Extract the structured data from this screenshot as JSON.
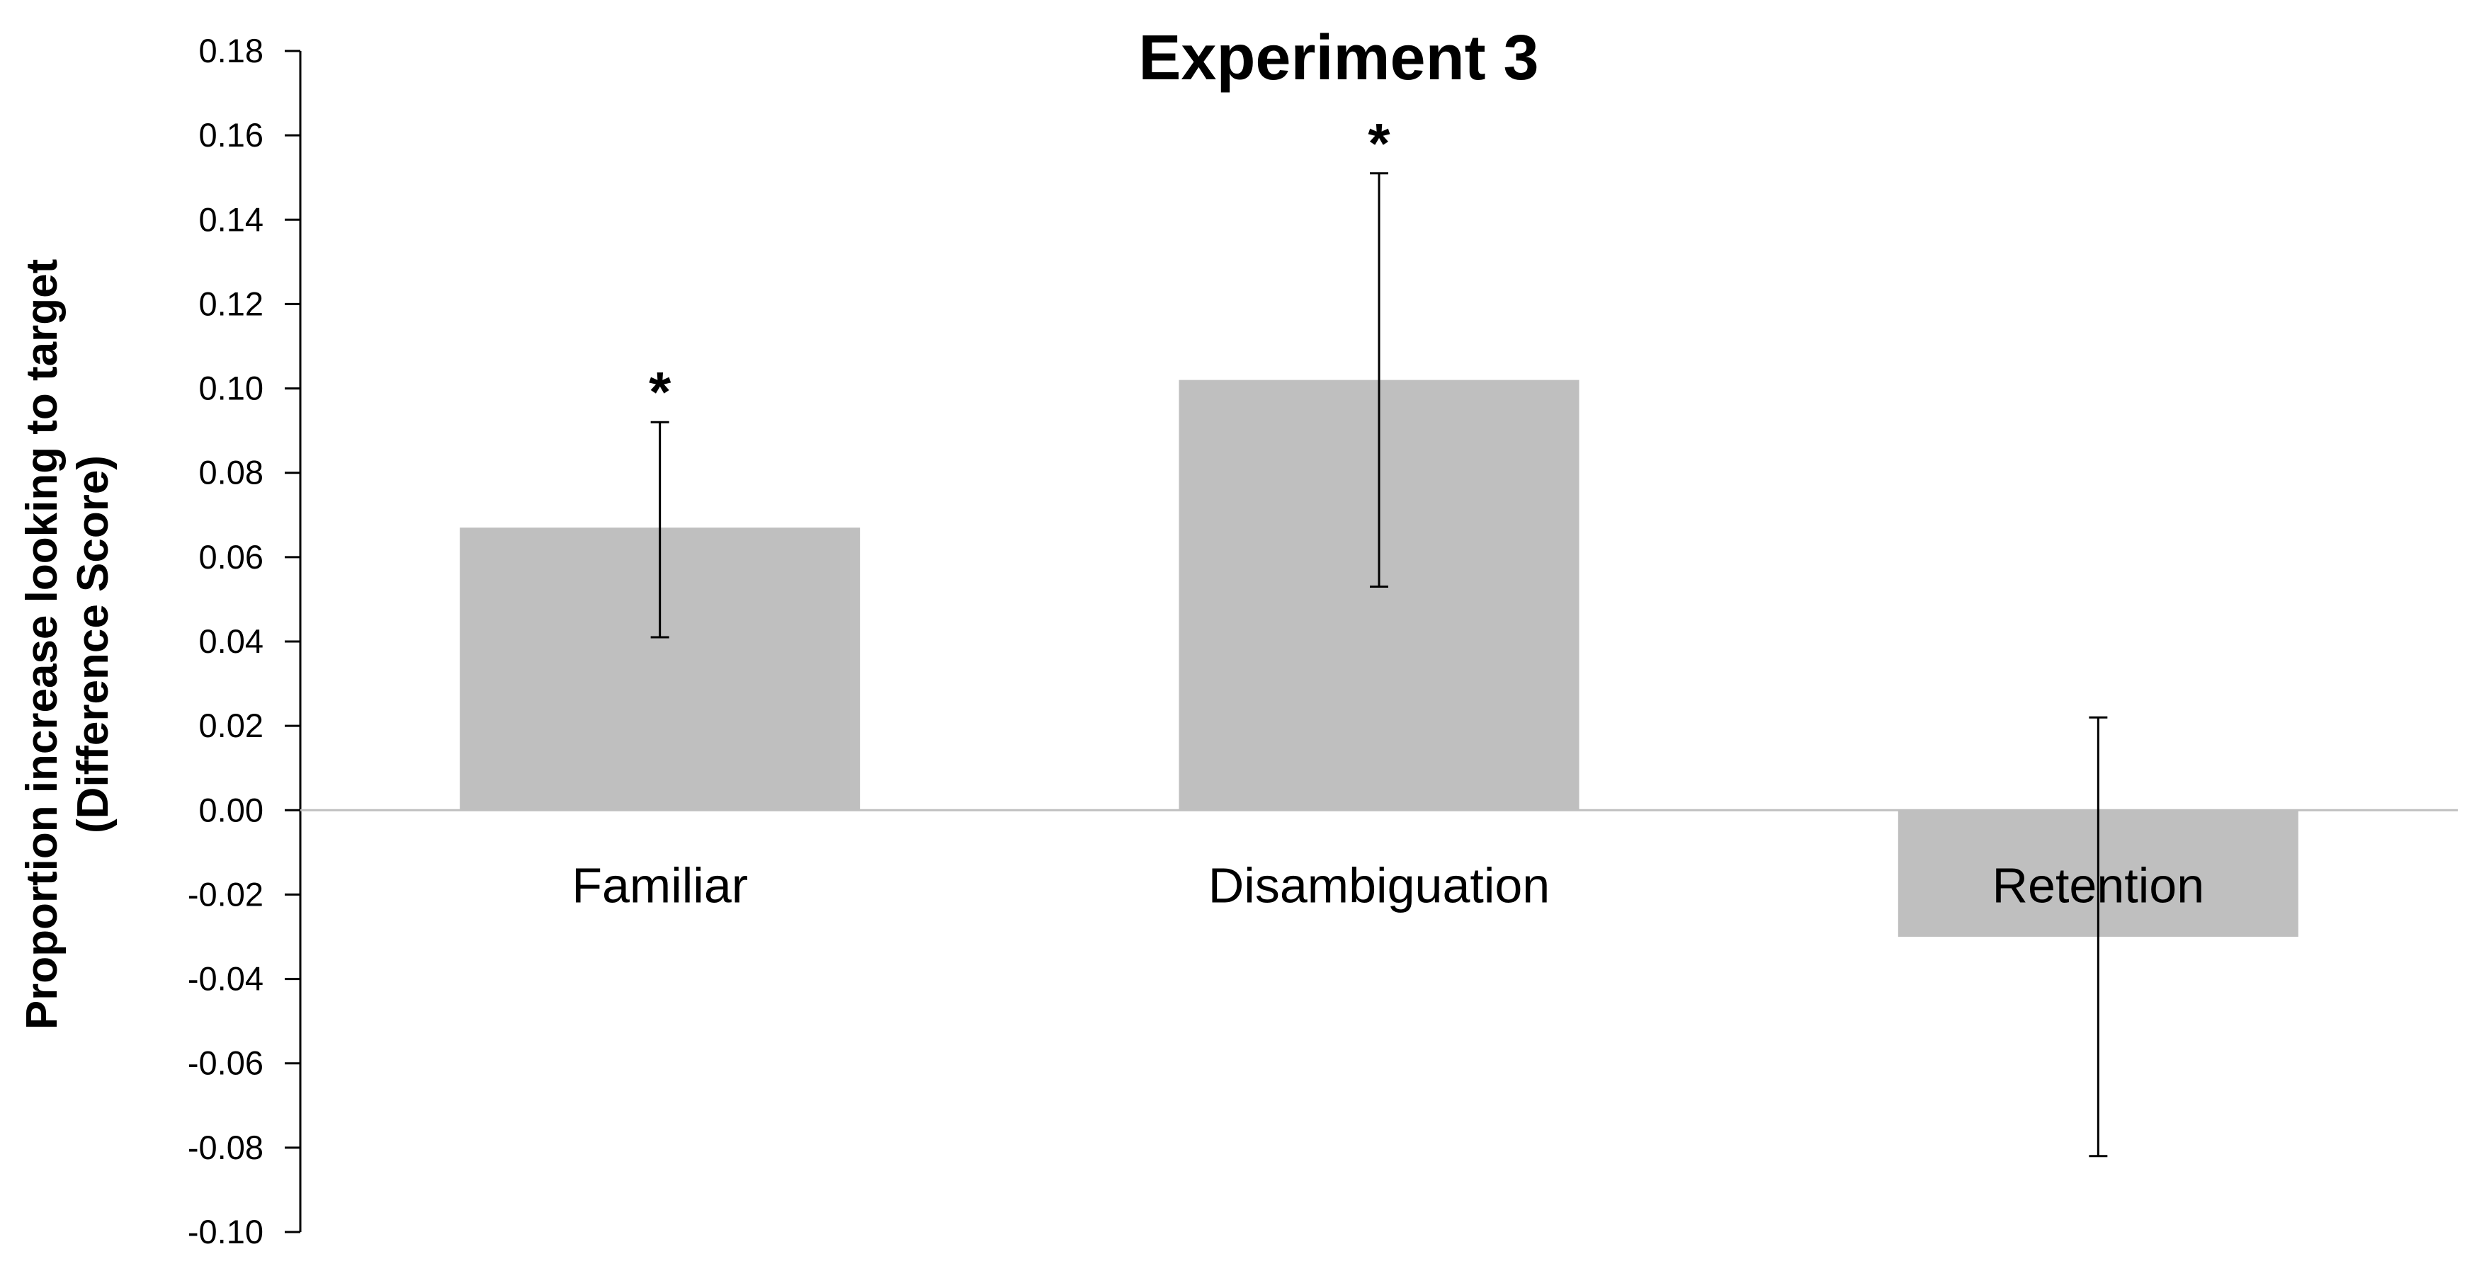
{
  "chart_data": {
    "type": "bar",
    "title": "Experiment 3",
    "ylabel": [
      "Proportion increase looking to target",
      "(Difference Score)"
    ],
    "xlabel": "",
    "categories": [
      "Familiar",
      "Disambiguation",
      "Retention"
    ],
    "values": [
      0.067,
      0.102,
      -0.03
    ],
    "error_bars": [
      {
        "low": 0.041,
        "high": 0.092
      },
      {
        "low": 0.053,
        "high": 0.151
      },
      {
        "low": -0.082,
        "high": 0.022
      }
    ],
    "significance": [
      "*",
      "*",
      ""
    ],
    "ylim": [
      -0.1,
      0.18
    ],
    "yticks": [
      0.18,
      0.16,
      0.14,
      0.12,
      0.1,
      0.08,
      0.06,
      0.04,
      0.02,
      0.0,
      -0.02,
      -0.04,
      -0.06,
      -0.08,
      -0.1
    ],
    "ytick_labels": [
      "0.18",
      "0.16",
      "0.14",
      "0.12",
      "0.10",
      "0.08",
      "0.06",
      "0.04",
      "0.02",
      "0.00",
      "-0.02",
      "-0.04",
      "-0.06",
      "-0.08",
      "-0.10"
    ],
    "grid": false,
    "legend": "none",
    "colors": {
      "bar": "#bfbfbf",
      "axis": "#000000",
      "zero_line": "#bfbfbf",
      "error_bar": "#000000"
    }
  }
}
